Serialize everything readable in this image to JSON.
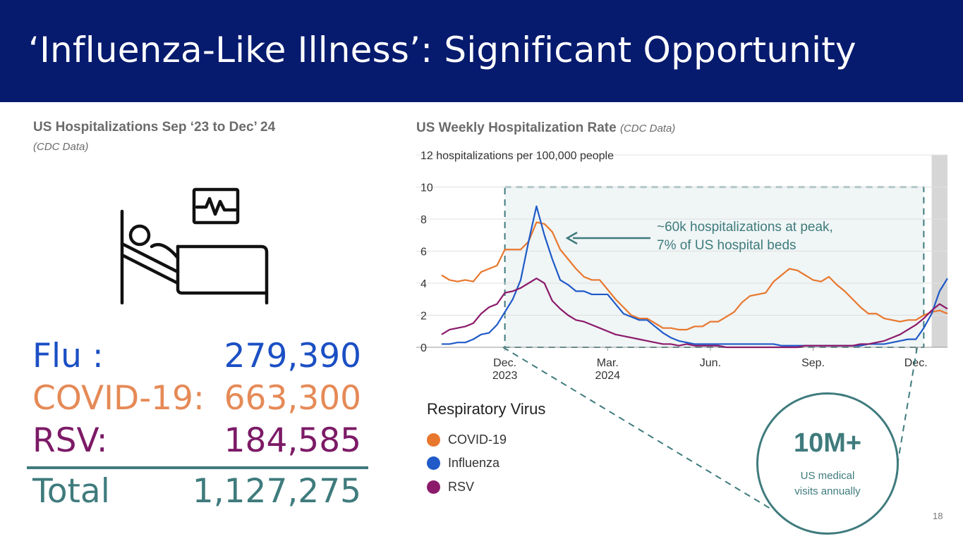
{
  "header": {
    "title": "‘Influenza-Like Illness’: Significant Opportunity"
  },
  "left": {
    "title": "US Hospitalizations Sep ‘23 to Dec’ 24",
    "subtitle": "(CDC Data)",
    "stats": [
      {
        "label": "Flu :",
        "value": "279,390"
      },
      {
        "label": "COVID-19:",
        "value": "663,300"
      },
      {
        "label": "RSV:",
        "value": "184,585"
      }
    ],
    "total": {
      "label": "Total",
      "value": "1,127,275"
    }
  },
  "right": {
    "title": "US Weekly Hospitalization Rate",
    "source": "(CDC Data)"
  },
  "chart_data": {
    "type": "line",
    "title": "US Weekly Hospitalization Rate (CDC Data)",
    "ylabel": "12 hospitalizations per 100,000 people",
    "ylim": [
      0,
      12
    ],
    "xlim": [
      0,
      64
    ],
    "y_ticks": [
      "0",
      "2",
      "4",
      "6",
      "8",
      "10"
    ],
    "x_ticks": [
      {
        "x": 8,
        "label": "Dec.",
        "label2": "2023"
      },
      {
        "x": 21,
        "label": "Mar.",
        "label2": "2024"
      },
      {
        "x": 34,
        "label": "Jun.",
        "label2": ""
      },
      {
        "x": 47,
        "label": "Sep.",
        "label2": ""
      },
      {
        "x": 60,
        "label": "Dec.",
        "label2": ""
      }
    ],
    "shaded_region": [
      62,
      64
    ],
    "highlight_box": {
      "x": [
        8,
        61
      ],
      "y": [
        0,
        10
      ]
    },
    "series": [
      {
        "name": "COVID-19",
        "color": "#e8772e",
        "values": [
          4.5,
          4.2,
          4.1,
          4.2,
          4.1,
          4.7,
          4.9,
          5.1,
          6.1,
          6.1,
          6.1,
          6.6,
          7.8,
          7.7,
          7.2,
          6.1,
          5.5,
          4.9,
          4.4,
          4.2,
          4.2,
          3.6,
          3.0,
          2.5,
          2.0,
          1.8,
          1.8,
          1.5,
          1.2,
          1.2,
          1.1,
          1.1,
          1.3,
          1.3,
          1.6,
          1.6,
          1.9,
          2.2,
          2.8,
          3.2,
          3.3,
          3.4,
          4.1,
          4.5,
          4.9,
          4.8,
          4.5,
          4.2,
          4.1,
          4.4,
          3.9,
          3.5,
          3.0,
          2.5,
          2.1,
          2.1,
          1.8,
          1.7,
          1.6,
          1.7,
          1.7,
          2.0,
          2.2,
          2.3,
          2.1
        ]
      },
      {
        "name": "Influenza",
        "color": "#1f5ac8",
        "values": [
          0.2,
          0.2,
          0.3,
          0.3,
          0.5,
          0.8,
          0.9,
          1.4,
          2.2,
          3.0,
          4.2,
          6.6,
          8.8,
          7.0,
          5.5,
          4.2,
          3.9,
          3.5,
          3.5,
          3.3,
          3.3,
          3.3,
          2.7,
          2.1,
          1.9,
          1.7,
          1.7,
          1.3,
          0.9,
          0.6,
          0.4,
          0.3,
          0.2,
          0.2,
          0.2,
          0.2,
          0.2,
          0.2,
          0.2,
          0.2,
          0.2,
          0.2,
          0.2,
          0.1,
          0.1,
          0.1,
          0.1,
          0.1,
          0.1,
          0.1,
          0.1,
          0.1,
          0.1,
          0.1,
          0.2,
          0.2,
          0.2,
          0.3,
          0.4,
          0.5,
          0.5,
          1.2,
          2.1,
          3.5,
          4.3
        ]
      },
      {
        "name": "RSV",
        "color": "#8b1a6b",
        "values": [
          0.8,
          1.1,
          1.2,
          1.3,
          1.5,
          2.1,
          2.5,
          2.7,
          3.4,
          3.5,
          3.7,
          4.0,
          4.3,
          4.0,
          2.9,
          2.4,
          2.0,
          1.7,
          1.6,
          1.4,
          1.2,
          1.0,
          0.8,
          0.7,
          0.6,
          0.5,
          0.4,
          0.3,
          0.2,
          0.2,
          0.1,
          0.2,
          0.1,
          0.1,
          0.1,
          0.1,
          0.0,
          0.0,
          0.0,
          0.0,
          0.0,
          0.0,
          0.0,
          0.0,
          0.0,
          0.0,
          0.1,
          0.1,
          0.1,
          0.1,
          0.1,
          0.1,
          0.1,
          0.2,
          0.2,
          0.3,
          0.4,
          0.6,
          0.8,
          1.1,
          1.4,
          1.8,
          2.3,
          2.7,
          2.4
        ]
      }
    ],
    "legend_title": "Respiratory Virus",
    "annotation": [
      "~60k hospitalizations at peak,",
      "7% of US hospital beds"
    ]
  },
  "legend": {
    "title": "Respiratory Virus",
    "items": [
      {
        "label": "COVID-19",
        "color": "#e8772e"
      },
      {
        "label": "Influenza",
        "color": "#1f5ac8"
      },
      {
        "label": "RSV",
        "color": "#8b1a6b"
      }
    ]
  },
  "annotation": {
    "line1": "~60k hospitalizations at peak,",
    "line2": "7% of US hospital beds"
  },
  "callout": {
    "big": "10M+",
    "line1": "US medical",
    "line2": "visits annually"
  },
  "page_number": "18"
}
